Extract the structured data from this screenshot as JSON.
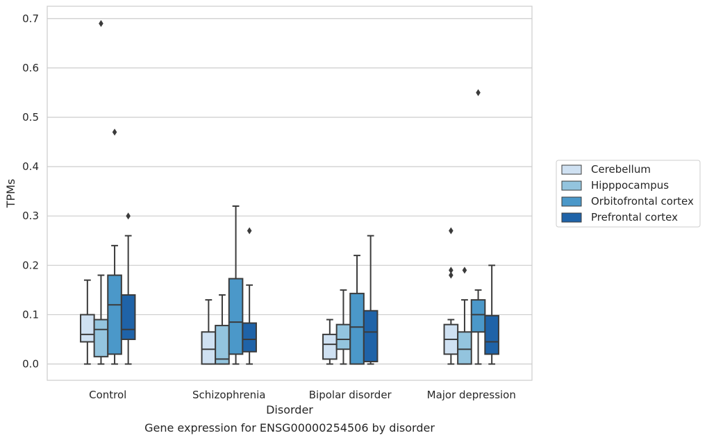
{
  "chart_data": {
    "type": "box",
    "title": "",
    "caption": "Gene expression for ENSG00000254506 by disorder",
    "xlabel": "Disorder",
    "ylabel": "TPMs",
    "ylim": [
      -0.033,
      0.725
    ],
    "yticks": [
      "0.0",
      "0.1",
      "0.2",
      "0.3",
      "0.4",
      "0.5",
      "0.6",
      "0.7"
    ],
    "grid": "horizontal",
    "legend_position": "right",
    "categories": [
      "Control",
      "Schizophrenia",
      "Bipolar disorder",
      "Major depression"
    ],
    "series": [
      {
        "name": "Cerebellum",
        "color": "#cfe1f2",
        "boxes": [
          {
            "whislo": 0.0,
            "q1": 0.045,
            "med": 0.06,
            "q3": 0.1,
            "whishi": 0.17,
            "fliers": []
          },
          {
            "whislo": 0.0,
            "q1": 0.0,
            "med": 0.03,
            "q3": 0.065,
            "whishi": 0.13,
            "fliers": []
          },
          {
            "whislo": 0.0,
            "q1": 0.01,
            "med": 0.04,
            "q3": 0.06,
            "whishi": 0.09,
            "fliers": []
          },
          {
            "whislo": 0.0,
            "q1": 0.02,
            "med": 0.05,
            "q3": 0.08,
            "whishi": 0.09,
            "fliers": [
              0.27,
              0.19,
              0.18
            ]
          }
        ]
      },
      {
        "name": "Hipppocampus",
        "color": "#93c4de",
        "boxes": [
          {
            "whislo": 0.0,
            "q1": 0.015,
            "med": 0.07,
            "q3": 0.09,
            "whishi": 0.18,
            "fliers": [
              0.69
            ]
          },
          {
            "whislo": 0.0,
            "q1": 0.0,
            "med": 0.01,
            "q3": 0.078,
            "whishi": 0.14,
            "fliers": []
          },
          {
            "whislo": 0.0,
            "q1": 0.03,
            "med": 0.05,
            "q3": 0.08,
            "whishi": 0.15,
            "fliers": []
          },
          {
            "whislo": 0.0,
            "q1": 0.0,
            "med": 0.03,
            "q3": 0.065,
            "whishi": 0.13,
            "fliers": [
              0.19
            ]
          }
        ]
      },
      {
        "name": "Orbitofrontal cortex",
        "color": "#4b98c9",
        "boxes": [
          {
            "whislo": 0.0,
            "q1": 0.02,
            "med": 0.12,
            "q3": 0.18,
            "whishi": 0.24,
            "fliers": [
              0.47
            ]
          },
          {
            "whislo": 0.0,
            "q1": 0.02,
            "med": 0.085,
            "q3": 0.173,
            "whishi": 0.32,
            "fliers": []
          },
          {
            "whislo": 0.0,
            "q1": 0.0,
            "med": 0.075,
            "q3": 0.143,
            "whishi": 0.22,
            "fliers": []
          },
          {
            "whislo": 0.0,
            "q1": 0.065,
            "med": 0.1,
            "q3": 0.13,
            "whishi": 0.15,
            "fliers": [
              0.55
            ]
          }
        ]
      },
      {
        "name": "Prefrontal cortex",
        "color": "#1f63a8",
        "boxes": [
          {
            "whislo": 0.0,
            "q1": 0.05,
            "med": 0.07,
            "q3": 0.14,
            "whishi": 0.26,
            "fliers": [
              0.3
            ]
          },
          {
            "whislo": 0.0,
            "q1": 0.025,
            "med": 0.05,
            "q3": 0.083,
            "whishi": 0.16,
            "fliers": [
              0.27
            ]
          },
          {
            "whislo": 0.0,
            "q1": 0.005,
            "med": 0.065,
            "q3": 0.108,
            "whishi": 0.26,
            "fliers": []
          },
          {
            "whislo": 0.0,
            "q1": 0.02,
            "med": 0.045,
            "q3": 0.098,
            "whishi": 0.2,
            "fliers": []
          }
        ]
      }
    ]
  }
}
